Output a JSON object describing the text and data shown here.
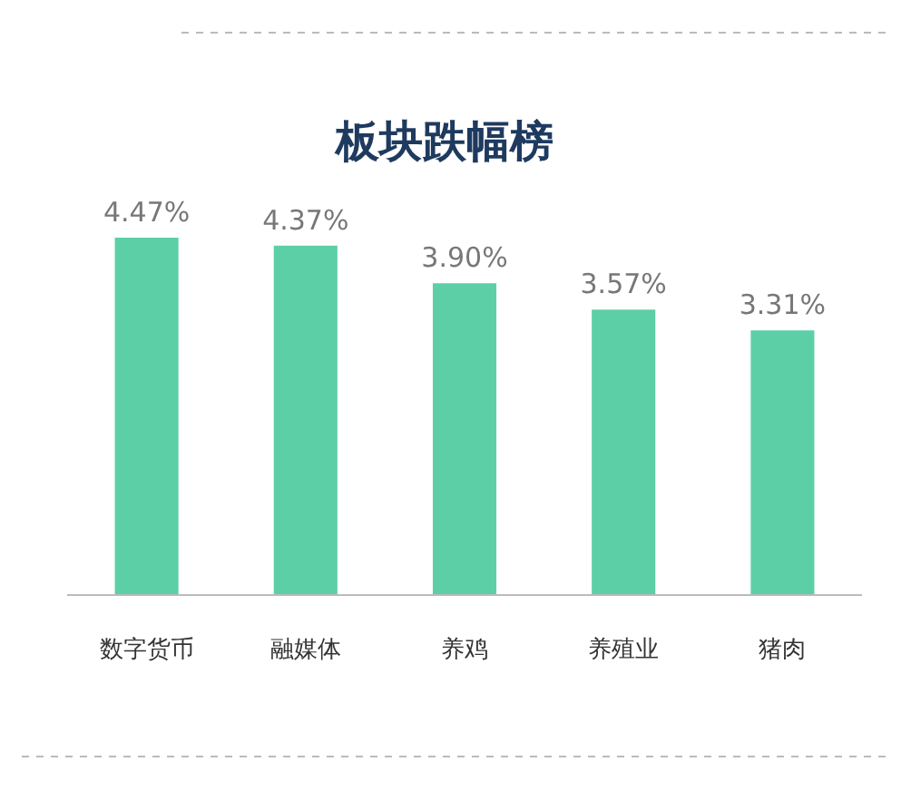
{
  "chart_data": {
    "type": "bar",
    "title": "板块跌幅榜",
    "categories": [
      "数字货币",
      "融媒体",
      "养鸡",
      "养殖业",
      "猪肉"
    ],
    "values": [
      4.47,
      4.37,
      3.9,
      3.57,
      3.31
    ],
    "value_labels": [
      "4.47%",
      "4.37%",
      "3.90%",
      "3.57%",
      "3.31%"
    ],
    "color": "#5ccfa6",
    "tick_labels": "x"
  }
}
